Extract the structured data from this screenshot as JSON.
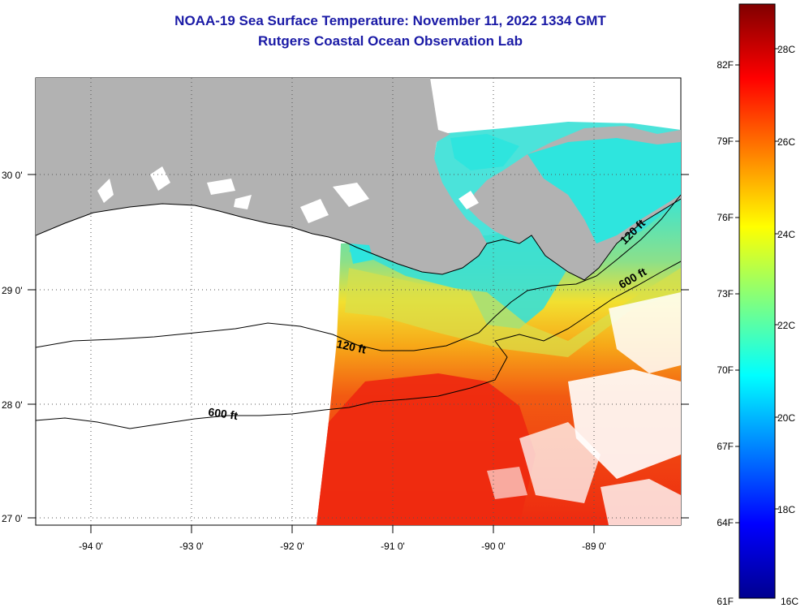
{
  "title": {
    "line1": "NOAA-19 Sea Surface Temperature:  November 11, 2022 1334 GMT",
    "line2": "Rutgers Coastal Ocean Observation Lab"
  },
  "map": {
    "lat_labels": [
      "30 0'",
      "29 0'",
      "28 0'",
      "27 0'"
    ],
    "lon_labels": [
      "-94 0'",
      "-93 0'",
      "-92 0'",
      "-91 0'",
      "-90 0'",
      "-89 0'"
    ],
    "contour_labels": {
      "c120_west": "120 ft",
      "c600_west": "600 ft",
      "c120_east": "120 ft",
      "c600_east": "600 ft"
    },
    "colors": {
      "land": "#b2b2b2",
      "no_data": "#ffffff",
      "warm": "#f2280f",
      "mid": "#fbbf06",
      "cool": "#1de3e6"
    }
  },
  "colorbar": {
    "f_labels": [
      "82F",
      "79F",
      "76F",
      "73F",
      "70F",
      "67F",
      "64F",
      "61F"
    ],
    "c_labels": [
      "28C",
      "26C",
      "24C",
      "22C",
      "20C",
      "18C",
      "16C"
    ]
  }
}
